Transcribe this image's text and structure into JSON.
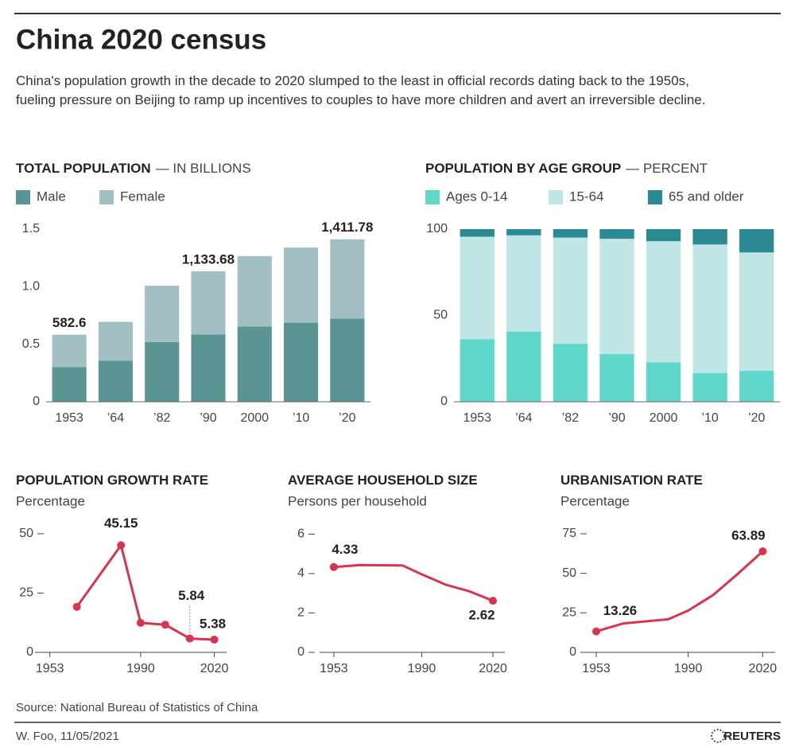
{
  "header": {
    "title": "China 2020 census",
    "subtitle": "China's population growth in the decade to 2020 slumped to the least in official records dating back to the 1950s, fueling pressure on Beijing to ramp up incentives to couples to have more children and avert an irreversible decline."
  },
  "chart_data": [
    {
      "type": "bar",
      "stacked": true,
      "title": "TOTAL POPULATION",
      "subtitle": "— IN BILLIONS",
      "categories": [
        "1953",
        "’64",
        "’82",
        "’90",
        "2000",
        "’10",
        "’20"
      ],
      "series": [
        {
          "name": "Male",
          "color": "#5a9594",
          "values": [
            0.3012,
            0.3565,
            0.5187,
            0.5839,
            0.6535,
            0.6869,
            0.72334
          ]
        },
        {
          "name": "Female",
          "color": "#a2bfc4",
          "values": [
            0.2814,
            0.3381,
            0.4895,
            0.5498,
            0.6123,
            0.6528,
            0.68844
          ]
        }
      ],
      "annotations": [
        {
          "x": "1953",
          "y": 0.5826,
          "label": "582.6"
        },
        {
          "x": "’90",
          "y": 1.13368,
          "label": "1,133.68"
        },
        {
          "x": "’20",
          "y": 1.41178,
          "label": "1,411.78"
        }
      ],
      "ylim": [
        0,
        1.5
      ],
      "yticks": [
        0,
        0.5,
        {
          "value": 1,
          "label": "1.0"
        },
        1.5
      ],
      "legend": "top-left"
    },
    {
      "type": "bar",
      "stacked": true,
      "title": "POPULATION BY AGE GROUP",
      "subtitle": "— PERCENT",
      "categories": [
        "1953",
        "’64",
        "’82",
        "’90",
        "2000",
        "’10",
        "’20"
      ],
      "series": [
        {
          "name": "Ages 0-14",
          "color": "#5fd8cb",
          "values": [
            36.3,
            40.7,
            33.6,
            27.7,
            22.9,
            16.6,
            17.95
          ]
        },
        {
          "name": "15-64",
          "color": "#bfe5e5",
          "values": [
            59.3,
            55.7,
            61.5,
            66.7,
            70.1,
            74.5,
            68.55
          ]
        },
        {
          "name": "65 and older",
          "color": "#2b8a94",
          "values": [
            4.4,
            3.6,
            4.9,
            5.6,
            7.0,
            8.9,
            13.5
          ]
        }
      ],
      "ylim": [
        0,
        100
      ],
      "yticks": [
        0,
        50,
        100
      ],
      "legend": "top-left"
    },
    {
      "type": "line",
      "title": "POPULATION GROWTH RATE",
      "subtitle": "Percentage",
      "color": "#d9344f",
      "markers": "all",
      "x": [
        1964,
        1982,
        1990,
        2000,
        2010,
        2020
      ],
      "values": [
        19.22,
        45.15,
        12.45,
        11.66,
        5.84,
        5.38
      ],
      "value_labels": [
        null,
        "45.15",
        null,
        null,
        "5.84",
        "5.38"
      ],
      "xlim": [
        1945,
        2025
      ],
      "xticks": [
        1953,
        1990,
        2020
      ],
      "ylim": [
        0,
        55
      ],
      "yticks": [
        0,
        25,
        50
      ]
    },
    {
      "type": "line",
      "title": "AVERAGE HOUSEHOLD SIZE",
      "subtitle": "Persons per household",
      "color": "#d9344f",
      "markers": "ends",
      "x": [
        1953,
        1964,
        1982,
        1990,
        2000,
        2010,
        2020
      ],
      "values": [
        4.33,
        4.43,
        4.41,
        3.96,
        3.44,
        3.1,
        2.62
      ],
      "value_labels": [
        "4.33",
        null,
        null,
        null,
        null,
        null,
        "2.62"
      ],
      "xlim": [
        1945,
        2025
      ],
      "xticks": [
        1953,
        1990,
        2020
      ],
      "ylim": [
        0,
        6.5
      ],
      "yticks": [
        0,
        2,
        4,
        6
      ]
    },
    {
      "type": "line",
      "title": "URBANISATION RATE",
      "subtitle": "Percentage",
      "color": "#d9344f",
      "markers": "ends",
      "x": [
        1953,
        1964,
        1982,
        1990,
        2000,
        2010,
        2020
      ],
      "values": [
        13.26,
        18.3,
        20.91,
        26.44,
        36.22,
        49.68,
        63.89
      ],
      "value_labels": [
        "13.26",
        null,
        null,
        null,
        null,
        null,
        "63.89"
      ],
      "xlim": [
        1945,
        2025
      ],
      "xticks": [
        1953,
        1990,
        2020
      ],
      "ylim": [
        0,
        80
      ],
      "yticks": [
        0,
        25,
        50,
        75
      ]
    }
  ],
  "footer": {
    "source": "Source: National Bureau of Statistics of China",
    "credit": "W. Foo, 11/05/2021",
    "brand": "REUTERS"
  }
}
